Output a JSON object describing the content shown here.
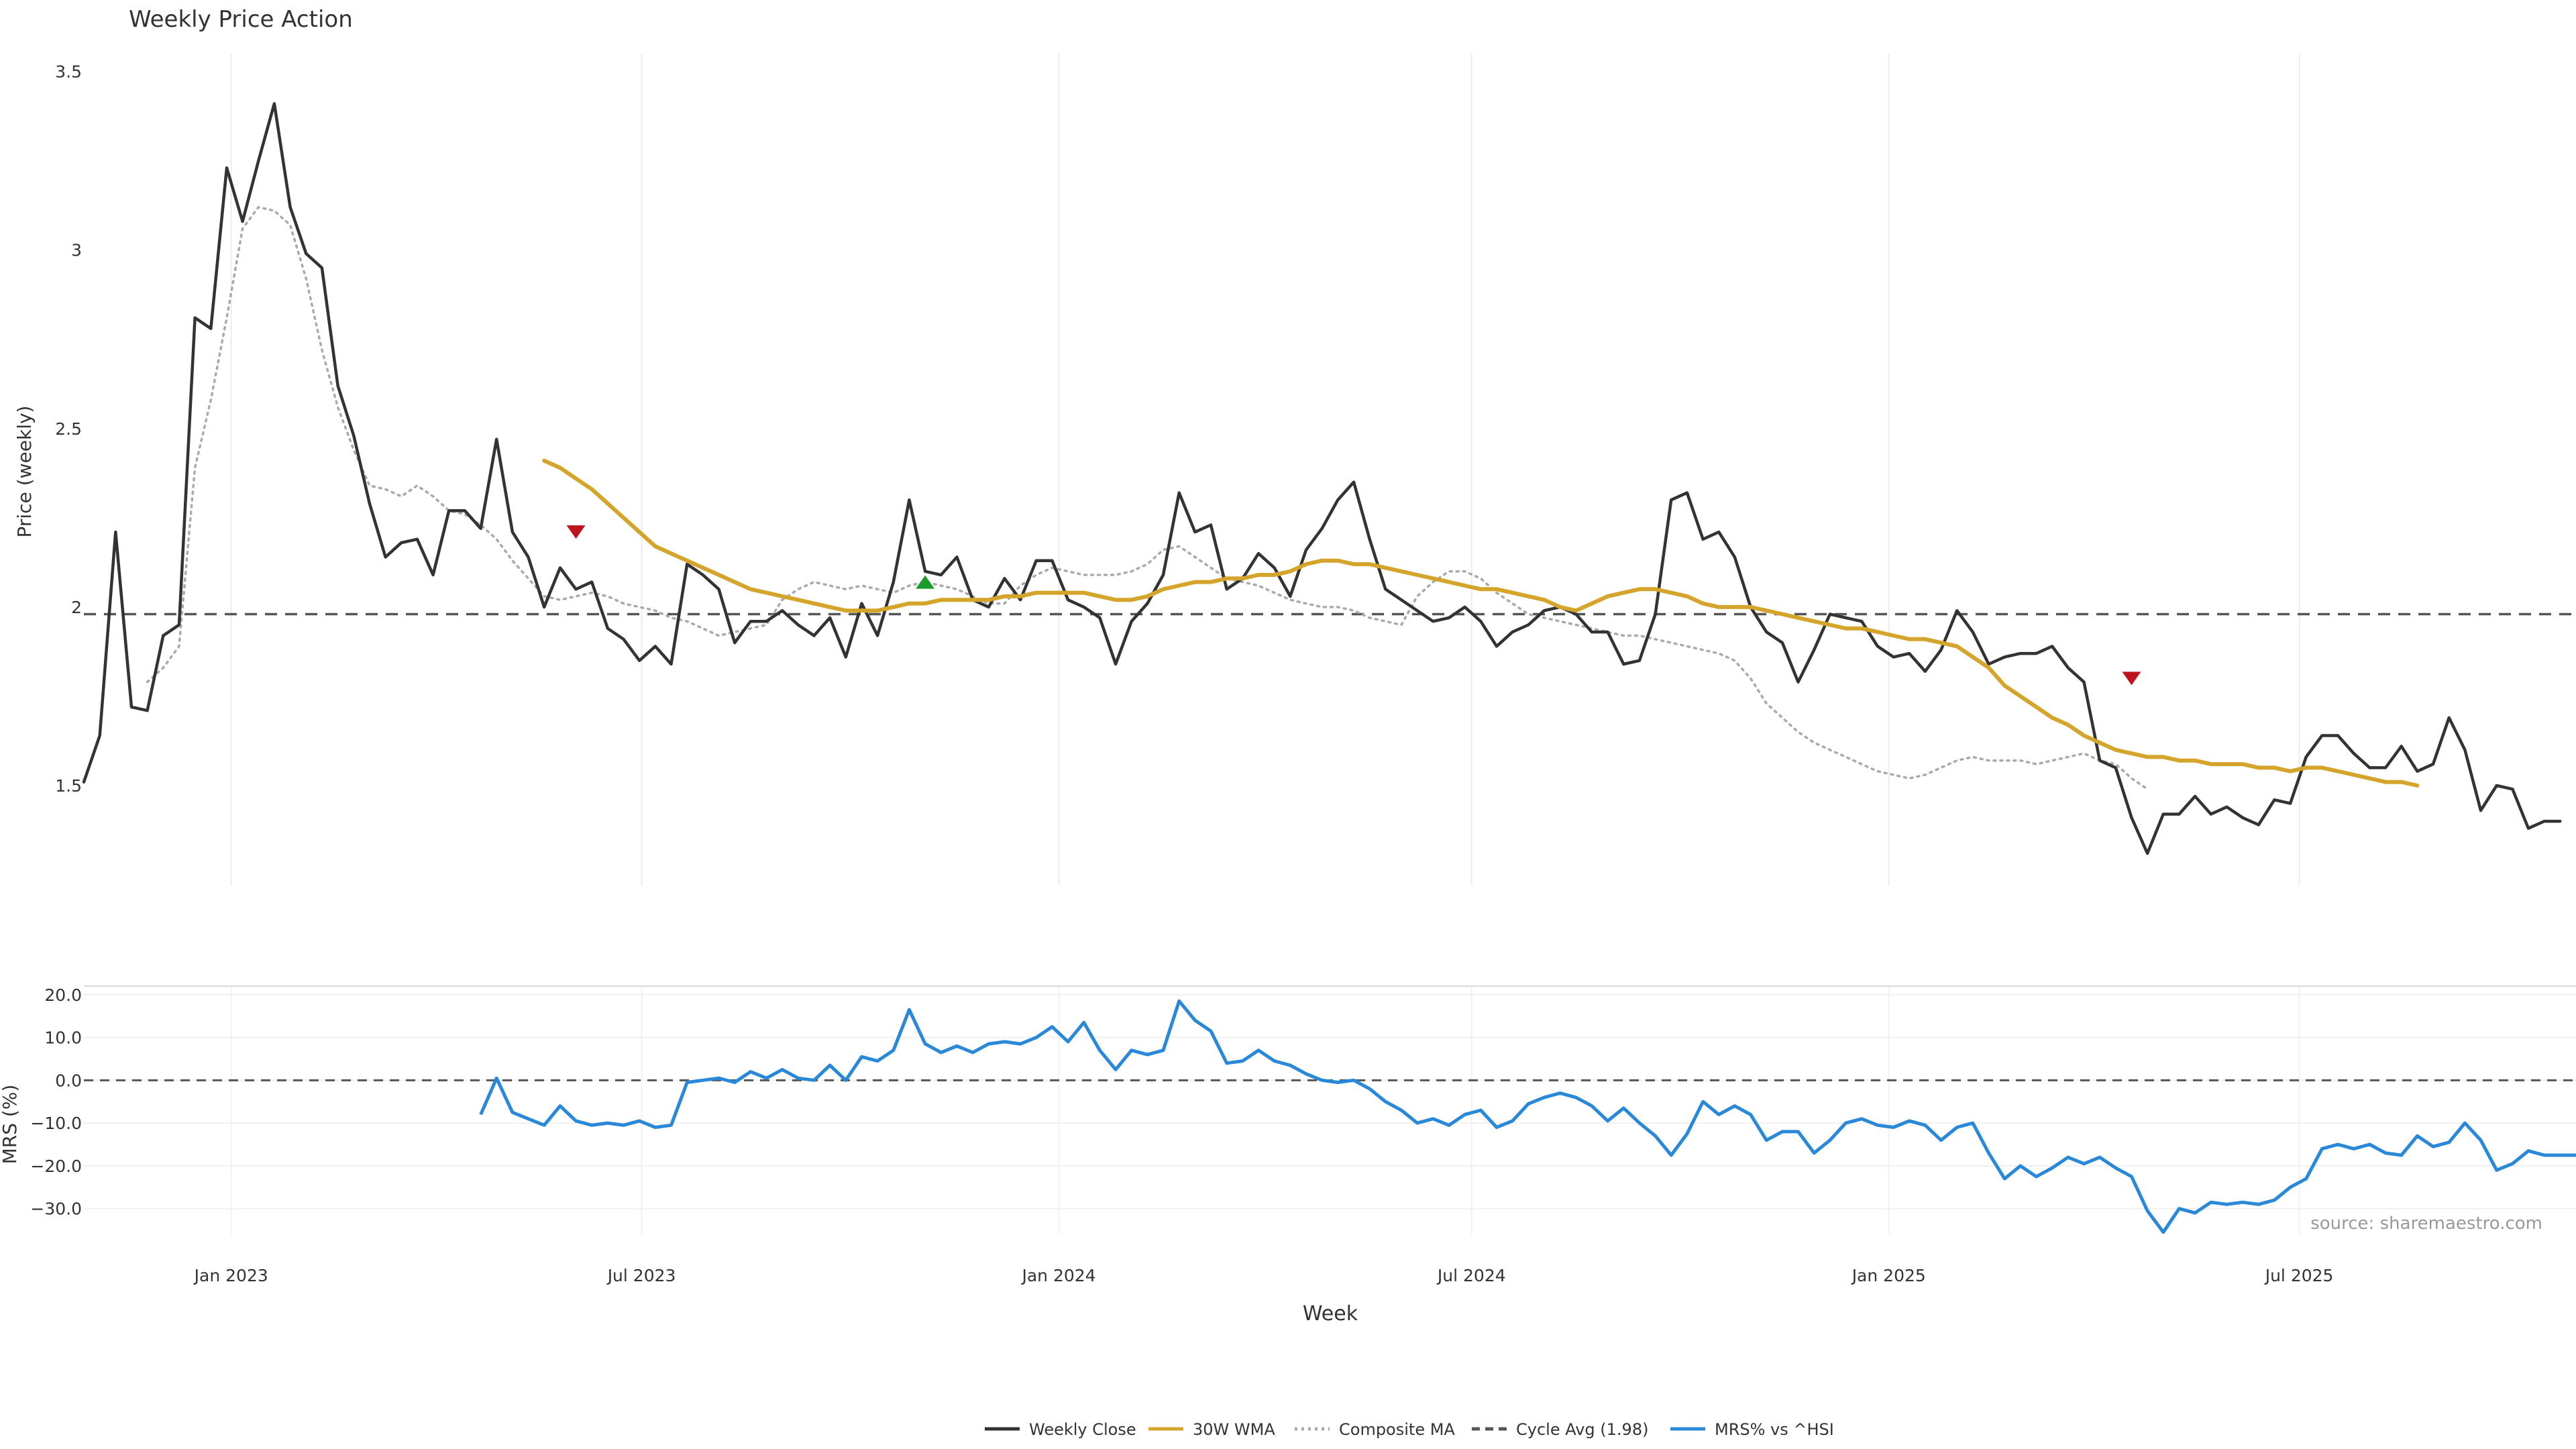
{
  "chart_data": {
    "type": "line",
    "title": "Weekly Price Action",
    "xlabel": "Week",
    "source_note": "source: sharemaestro.com",
    "x_ticks": [
      "Jan 2023",
      "Jul 2023",
      "Jan 2024",
      "Jul 2024",
      "Jan 2025",
      "Jul 2025"
    ],
    "x_start": "2022-10-28",
    "x_range": [
      "2022-10-28",
      "2025-10-31"
    ],
    "price_panel": {
      "ylabel": "Price (weekly)",
      "yticks": [
        "1.5",
        "2",
        "2.5",
        "3",
        "3.5"
      ],
      "ylim": [
        1.22,
        3.55
      ],
      "cycle_avg": 1.98,
      "series": [
        {
          "name": "Weekly Close",
          "color": "#333333",
          "style": "solid",
          "start_index": 0,
          "values": [
            1.51,
            1.64,
            2.21,
            1.72,
            1.71,
            1.92,
            1.95,
            2.81,
            2.78,
            3.23,
            3.08,
            3.25,
            3.41,
            3.12,
            2.99,
            2.95,
            2.62,
            2.48,
            2.29,
            2.14,
            2.18,
            2.19,
            2.09,
            2.27,
            2.27,
            2.22,
            2.47,
            2.21,
            2.14,
            2.0,
            2.11,
            2.05,
            2.07,
            1.94,
            1.91,
            1.85,
            1.89,
            1.84,
            2.12,
            2.09,
            2.05,
            1.9,
            1.96,
            1.96,
            1.99,
            1.95,
            1.92,
            1.97,
            1.86,
            2.01,
            1.92,
            2.07,
            2.3,
            2.1,
            2.09,
            2.14,
            2.02,
            2.0,
            2.08,
            2.02,
            2.13,
            2.13,
            2.02,
            2.0,
            1.97,
            1.84,
            1.96,
            2.01,
            2.09,
            2.32,
            2.21,
            2.23,
            2.05,
            2.08,
            2.15,
            2.11,
            2.03,
            2.16,
            2.22,
            2.3,
            2.35,
            2.19,
            2.05,
            2.02,
            1.99,
            1.96,
            1.97,
            2.0,
            1.96,
            1.89,
            1.93,
            1.95,
            1.99,
            2.0,
            1.98,
            1.93,
            1.93,
            1.84,
            1.85,
            1.98,
            2.3,
            2.32,
            2.19,
            2.21,
            2.14,
            2.0,
            1.93,
            1.9,
            1.79,
            1.88,
            1.98,
            1.97,
            1.96,
            1.89,
            1.86,
            1.87,
            1.82,
            1.88,
            1.99,
            1.93,
            1.84,
            1.86,
            1.87,
            1.87,
            1.89,
            1.83,
            1.79,
            1.57,
            1.55,
            1.41,
            1.31,
            1.42,
            1.42,
            1.47,
            1.42,
            1.44,
            1.41,
            1.39,
            1.46,
            1.45,
            1.58,
            1.64,
            1.64,
            1.59,
            1.55,
            1.55,
            1.61,
            1.54,
            1.56,
            1.69,
            1.6,
            1.43,
            1.5,
            1.49,
            1.38,
            1.4,
            1.4
          ]
        },
        {
          "name": "30W WMA",
          "color": "#d4a52a",
          "style": "solid",
          "start_index": 29,
          "values": [
            2.41,
            2.39,
            2.36,
            2.33,
            2.29,
            2.25,
            2.21,
            2.17,
            2.15,
            2.13,
            2.11,
            2.09,
            2.07,
            2.05,
            2.04,
            2.03,
            2.02,
            2.01,
            2.0,
            1.99,
            1.99,
            1.99,
            2.0,
            2.01,
            2.01,
            2.02,
            2.02,
            2.02,
            2.02,
            2.03,
            2.03,
            2.04,
            2.04,
            2.04,
            2.04,
            2.03,
            2.02,
            2.02,
            2.03,
            2.05,
            2.06,
            2.07,
            2.07,
            2.08,
            2.08,
            2.09,
            2.09,
            2.1,
            2.12,
            2.13,
            2.13,
            2.12,
            2.12,
            2.11,
            2.1,
            2.09,
            2.08,
            2.07,
            2.06,
            2.05,
            2.05,
            2.04,
            2.03,
            2.02,
            2.0,
            1.99,
            2.01,
            2.03,
            2.04,
            2.05,
            2.05,
            2.04,
            2.03,
            2.01,
            2.0,
            2.0,
            2.0,
            1.99,
            1.98,
            1.97,
            1.96,
            1.95,
            1.94,
            1.94,
            1.93,
            1.92,
            1.91,
            1.91,
            1.9,
            1.89,
            1.86,
            1.83,
            1.78,
            1.75,
            1.72,
            1.69,
            1.67,
            1.64,
            1.62,
            1.6,
            1.59,
            1.58,
            1.58,
            1.57,
            1.57,
            1.56,
            1.56,
            1.56,
            1.55,
            1.55,
            1.54,
            1.55,
            1.55,
            1.54,
            1.53,
            1.52,
            1.51,
            1.51,
            1.5
          ]
        },
        {
          "name": "Composite MA",
          "color": "#aaaaaa",
          "style": "dotted",
          "start_index": 4,
          "values": [
            1.79,
            1.83,
            1.89,
            2.39,
            2.58,
            2.81,
            3.06,
            3.12,
            3.11,
            3.07,
            2.92,
            2.72,
            2.56,
            2.44,
            2.34,
            2.33,
            2.31,
            2.34,
            2.31,
            2.27,
            2.26,
            2.23,
            2.19,
            2.13,
            2.08,
            2.03,
            2.02,
            2.03,
            2.04,
            2.03,
            2.01,
            2.0,
            1.99,
            1.97,
            1.96,
            1.94,
            1.92,
            1.93,
            1.94,
            1.95,
            2.02,
            2.05,
            2.07,
            2.06,
            2.05,
            2.06,
            2.05,
            2.04,
            2.06,
            2.07,
            2.06,
            2.05,
            2.03,
            2.01,
            2.01,
            2.06,
            2.09,
            2.11,
            2.1,
            2.09,
            2.09,
            2.09,
            2.1,
            2.12,
            2.16,
            2.17,
            2.14,
            2.11,
            2.08,
            2.07,
            2.06,
            2.04,
            2.02,
            2.01,
            2.0,
            2.0,
            1.99,
            1.97,
            1.96,
            1.95,
            2.03,
            2.07,
            2.1,
            2.1,
            2.08,
            2.04,
            2.01,
            1.98,
            1.97,
            1.96,
            1.95,
            1.94,
            1.93,
            1.92,
            1.92,
            1.91,
            1.9,
            1.89,
            1.88,
            1.87,
            1.85,
            1.8,
            1.73,
            1.69,
            1.65,
            1.62,
            1.6,
            1.58,
            1.56,
            1.54,
            1.53,
            1.52,
            1.53,
            1.55,
            1.57,
            1.58,
            1.57,
            1.57,
            1.57,
            1.56,
            1.57,
            1.58,
            1.59,
            1.57,
            1.56,
            1.52,
            1.49
          ]
        }
      ],
      "markers": [
        {
          "direction": "down",
          "color": "#c0111f",
          "index": 31,
          "value": 2.21
        },
        {
          "direction": "up",
          "color": "#1a9c2a",
          "index": 53,
          "value": 2.07
        },
        {
          "direction": "down",
          "color": "#c0111f",
          "index": 129,
          "value": 1.8
        }
      ]
    },
    "mrs_panel": {
      "ylabel": "MRS (%)",
      "yticks": [
        "20.0",
        "10.0",
        "0.0",
        "−10.0",
        "−20.0",
        "−30.0"
      ],
      "ylim": [
        -36,
        22
      ],
      "series": {
        "name": "MRS% vs ^HSI",
        "color": "#2a88d8",
        "start_index": 25,
        "values": [
          -8,
          0.5,
          -7.5,
          -9,
          -10.5,
          -6,
          -9.5,
          -10.5,
          -10,
          -10.5,
          -9.5,
          -11,
          -10.5,
          -0.5,
          0,
          0.5,
          -0.5,
          2,
          0.5,
          2.5,
          0.5,
          0,
          3.5,
          0,
          5.5,
          4.5,
          7,
          16.5,
          8.5,
          6.5,
          8,
          6.5,
          8.5,
          9,
          8.5,
          10,
          12.5,
          9,
          13.5,
          7,
          2.5,
          7,
          6,
          7,
          18.5,
          14,
          11.5,
          4,
          4.5,
          7,
          4.5,
          3.5,
          1.5,
          0,
          -0.5,
          0,
          -2,
          -5,
          -7,
          -10,
          -9,
          -10.5,
          -8,
          -7,
          -11,
          -9.5,
          -5.5,
          -4,
          -3,
          -4,
          -6,
          -9.5,
          -6.5,
          -10,
          -13,
          -17.5,
          -12.5,
          -5,
          -8,
          -6,
          -8,
          -14,
          -12,
          -12,
          -17,
          -14,
          -10,
          -9,
          -10.5,
          -11,
          -9.5,
          -10.5,
          -14,
          -11,
          -10,
          -17,
          -23,
          -20,
          -22.5,
          -20.5,
          -18,
          -19.5,
          -18,
          -20.5,
          -22.5,
          -30.5,
          -35.5,
          -30,
          -31,
          -28.5,
          -29,
          -28.5,
          -29,
          -28,
          -25,
          -23,
          -16,
          -15,
          -16,
          -15,
          -17,
          -17.5,
          -13,
          -15.5,
          -14.5,
          -10,
          -14,
          -21,
          -19.5,
          -16.5,
          -17.5,
          -17.5,
          -17.5
        ]
      }
    },
    "legend": {
      "placement": "bottom-center",
      "items": [
        {
          "label": "Weekly Close",
          "color": "#333333",
          "style": "solid"
        },
        {
          "label": "30W WMA",
          "color": "#d4a52a",
          "style": "solid"
        },
        {
          "label": "Composite MA",
          "color": "#aaaaaa",
          "style": "dotted"
        },
        {
          "label": "Cycle Avg (1.98)",
          "color": "#555555",
          "style": "dashed"
        },
        {
          "label": "MRS% vs ^HSI",
          "color": "#2a88d8",
          "style": "solid"
        }
      ]
    }
  }
}
